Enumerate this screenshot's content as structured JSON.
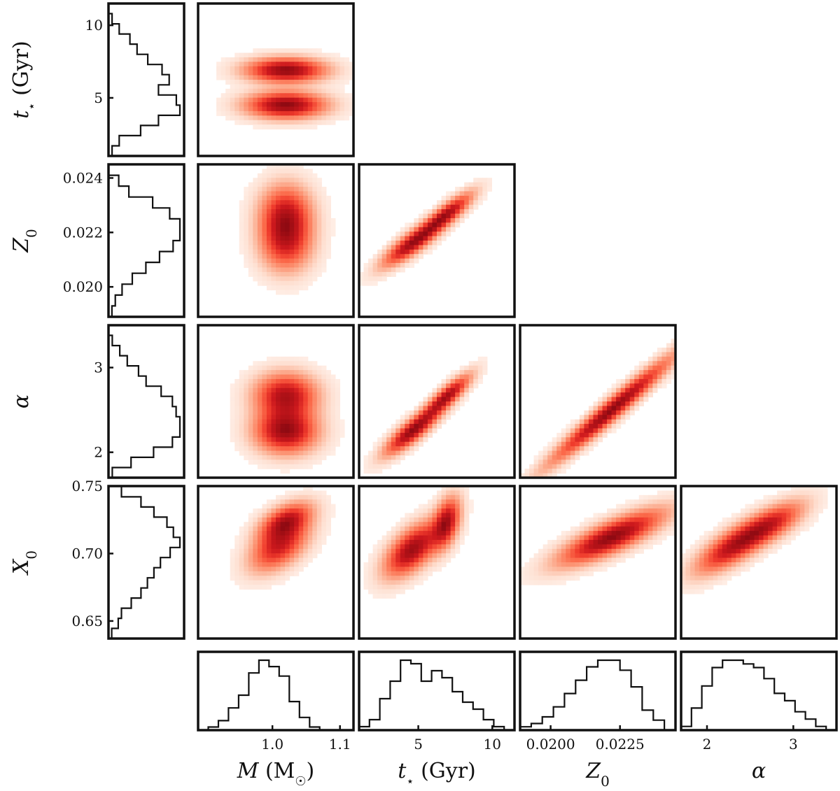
{
  "chart_data": {
    "type": "corner",
    "parameters": [
      {
        "id": "M",
        "label": "M (M☉)",
        "range": [
          0.89,
          1.12
        ],
        "ticks": [
          1.0,
          1.1
        ],
        "tick_labels": [
          "1.0",
          "1.1"
        ]
      },
      {
        "id": "t",
        "label": "t⋆ (Gyr)",
        "range": [
          1.0,
          11.5
        ],
        "ticks": [
          5,
          10
        ],
        "tick_labels": [
          "5",
          "10"
        ]
      },
      {
        "id": "Z0",
        "label": "Z0",
        "range": [
          0.0189,
          0.0245
        ],
        "ticks": [
          0.02,
          0.022,
          0.024
        ],
        "tick_labels": [
          "0.020",
          "0.022",
          "0.024"
        ],
        "x_ticks": [
          0.02,
          0.0225
        ],
        "x_tick_labels": [
          "0.0200",
          "0.0225"
        ]
      },
      {
        "id": "alpha",
        "label": "α",
        "range": [
          1.7,
          3.5
        ],
        "ticks": [
          2,
          3
        ],
        "tick_labels": [
          "2",
          "3"
        ]
      },
      {
        "id": "X0",
        "label": "X0",
        "range": [
          0.637,
          0.75
        ],
        "ticks": [
          0.65,
          0.7,
          0.75
        ],
        "tick_labels": [
          "0.65",
          "0.70",
          "0.75"
        ]
      }
    ],
    "marginals": {
      "M": {
        "edges": [
          0.89,
          0.905,
          0.92,
          0.935,
          0.95,
          0.965,
          0.98,
          0.995,
          1.01,
          1.025,
          1.04,
          1.055,
          1.07,
          1.085,
          1.1,
          1.115
        ],
        "counts": [
          0,
          1,
          3,
          7,
          11,
          18,
          22,
          20,
          17,
          9,
          4,
          1,
          0,
          0,
          0
        ]
      },
      "t": {
        "edges": [
          1.0,
          1.7,
          2.4,
          3.1,
          3.8,
          4.5,
          5.2,
          5.9,
          6.6,
          7.3,
          8.0,
          8.7,
          9.4,
          10.1,
          10.8,
          11.5
        ],
        "counts": [
          1,
          3,
          9,
          14,
          20,
          19,
          14,
          17,
          15,
          11,
          8,
          6,
          3,
          1,
          0
        ]
      },
      "Z0": {
        "edges": [
          0.0189,
          0.0193,
          0.0197,
          0.0201,
          0.0205,
          0.0209,
          0.0213,
          0.0217,
          0.0221,
          0.0225,
          0.0229,
          0.0233,
          0.0237,
          0.0241,
          0.0245
        ],
        "counts": [
          1,
          2,
          4,
          7,
          11,
          15,
          19,
          21,
          21,
          18,
          13,
          6,
          3,
          0
        ]
      },
      "alpha": {
        "edges": [
          1.7,
          1.82,
          1.94,
          2.06,
          2.18,
          2.3,
          2.42,
          2.54,
          2.66,
          2.78,
          2.9,
          3.02,
          3.14,
          3.26,
          3.38,
          3.5
        ],
        "counts": [
          1,
          6,
          12,
          17,
          19,
          19,
          18,
          17,
          14,
          10,
          8,
          5,
          3,
          1,
          0
        ]
      },
      "X0": {
        "edges": [
          0.637,
          0.6445,
          0.652,
          0.6595,
          0.667,
          0.6745,
          0.682,
          0.6895,
          0.697,
          0.7045,
          0.712,
          0.7195,
          0.727,
          0.7345,
          0.742,
          0.7495
        ],
        "counts": [
          1,
          3,
          4,
          7,
          10,
          12,
          14,
          16,
          19,
          22,
          20,
          18,
          14,
          10,
          4
        ]
      }
    },
    "joint_modes": {
      "M_t": [
        {
          "x": 1.02,
          "y": 6.9,
          "sx": 0.038,
          "sy": 0.55,
          "w": 1.0
        },
        {
          "x": 1.02,
          "y": 4.5,
          "sx": 0.038,
          "sy": 0.6,
          "w": 1.0
        }
      ],
      "M_Z0": [
        {
          "x": 1.02,
          "y": 0.0227,
          "sx": 0.025,
          "sy": 0.0007,
          "w": 1.0
        },
        {
          "x": 1.02,
          "y": 0.0216,
          "sx": 0.025,
          "sy": 0.0007,
          "w": 0.9
        }
      ],
      "t_Z0": [
        {
          "x": 4.6,
          "y": 0.0216,
          "sx": 1.3,
          "sy": 0.00055,
          "w": 1.0,
          "corr": 0.85
        },
        {
          "x": 7.0,
          "y": 0.0227,
          "sx": 1.1,
          "sy": 0.0005,
          "w": 0.9,
          "corr": 0.85
        }
      ],
      "M_alpha": [
        {
          "x": 1.02,
          "y": 2.67,
          "sx": 0.03,
          "sy": 0.17,
          "w": 0.9
        },
        {
          "x": 1.02,
          "y": 2.25,
          "sx": 0.03,
          "sy": 0.17,
          "w": 1.0
        }
      ],
      "t_alpha": [
        {
          "x": 4.6,
          "y": 2.25,
          "sx": 1.2,
          "sy": 0.18,
          "w": 1.0,
          "corr": 0.85
        },
        {
          "x": 7.0,
          "y": 2.67,
          "sx": 1.0,
          "sy": 0.16,
          "w": 0.9,
          "corr": 0.85
        }
      ],
      "Z0_alpha": [
        {
          "x": 0.0222,
          "y": 2.5,
          "sx": 0.0014,
          "sy": 0.4,
          "w": 1.0,
          "corr": 0.97
        }
      ],
      "M_X0": [
        {
          "x": 1.02,
          "y": 0.724,
          "sx": 0.025,
          "sy": 0.009,
          "w": 1.0,
          "corr": 0.5
        },
        {
          "x": 1.01,
          "y": 0.705,
          "sx": 0.028,
          "sy": 0.012,
          "w": 0.95,
          "corr": 0.5
        }
      ],
      "t_X0": [
        {
          "x": 4.6,
          "y": 0.703,
          "sx": 1.2,
          "sy": 0.013,
          "w": 1.0,
          "corr": 0.6
        },
        {
          "x": 6.9,
          "y": 0.723,
          "sx": 0.6,
          "sy": 0.012,
          "w": 0.9,
          "corr": 0.4
        }
      ],
      "Z0_X0": [
        {
          "x": 0.0222,
          "y": 0.712,
          "sx": 0.0012,
          "sy": 0.013,
          "w": 1.0,
          "corr": 0.8
        }
      ],
      "alpha_X0": [
        {
          "x": 2.3,
          "y": 0.705,
          "sx": 0.28,
          "sy": 0.013,
          "w": 1.0,
          "corr": 0.75
        },
        {
          "x": 2.75,
          "y": 0.722,
          "sx": 0.25,
          "sy": 0.011,
          "w": 0.8,
          "corr": 0.7
        }
      ]
    },
    "colormap": "Reds",
    "grid": false,
    "legend": "none"
  }
}
